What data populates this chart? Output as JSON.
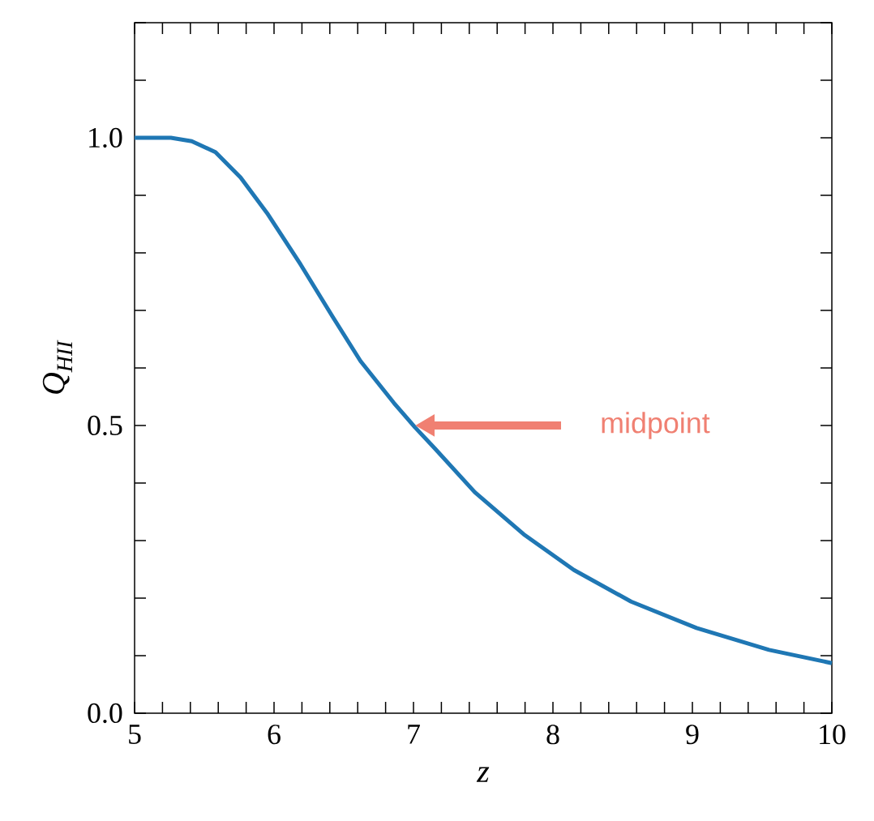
{
  "chart_data": {
    "type": "line",
    "xlabel": "z",
    "ylabel": "Q$_{HII}$",
    "x": [
      5,
      5.26,
      5.41,
      5.58,
      5.76,
      5.95,
      6.19,
      6.42,
      6.62,
      6.86,
      7.01,
      7.15,
      7.44,
      7.79,
      8.15,
      8.56,
      9.03,
      9.55,
      10
    ],
    "series": [
      {
        "color": "#1f77b4",
        "values": [
          1.0,
          1.0,
          0.994,
          0.975,
          0.931,
          0.869,
          0.78,
          0.689,
          0.612,
          0.539,
          0.497,
          0.461,
          0.384,
          0.311,
          0.249,
          0.194,
          0.148,
          0.11,
          0.087
        ]
      }
    ],
    "xlim": [
      5,
      10
    ],
    "ylim": [
      0,
      1.2
    ],
    "xticks": [
      5,
      {
        "value": 5.2,
        "label": null
      },
      {
        "value": 5.4,
        "label": null
      },
      {
        "value": 5.6,
        "label": null
      },
      {
        "value": 5.8,
        "label": null
      },
      6,
      {
        "value": 6.2,
        "label": null
      },
      {
        "value": 6.4,
        "label": null
      },
      {
        "value": 6.6,
        "label": null
      },
      {
        "value": 6.8,
        "label": null
      },
      7,
      {
        "value": 7.2,
        "label": null
      },
      {
        "value": 7.4,
        "label": null
      },
      {
        "value": 7.6,
        "label": null
      },
      {
        "value": 7.8,
        "label": null
      },
      8,
      {
        "value": 8.2,
        "label": null
      },
      {
        "value": 8.4,
        "label": null
      },
      {
        "value": 8.6,
        "label": null
      },
      {
        "value": 8.8,
        "label": null
      },
      9,
      {
        "value": 9.2,
        "label": null
      },
      {
        "value": 9.4,
        "label": null
      },
      {
        "value": 9.6,
        "label": null
      },
      {
        "value": 9.8,
        "label": null
      },
      10
    ],
    "yticks": [
      {
        "value": 0,
        "label": "0.0"
      },
      {
        "value": 0.1,
        "label": null
      },
      {
        "value": 0.2,
        "label": null
      },
      {
        "value": 0.3,
        "label": null
      },
      {
        "value": 0.4,
        "label": null
      },
      {
        "value": 0.5,
        "label": "0.5"
      },
      {
        "value": 0.6,
        "label": null
      },
      {
        "value": 0.7,
        "label": null
      },
      {
        "value": 0.8,
        "label": null
      },
      {
        "value": 0.9,
        "label": null
      },
      {
        "value": 1.0,
        "label": "1.0"
      },
      {
        "value": 1.1,
        "label": null
      },
      {
        "value": 1.2,
        "label": null
      }
    ],
    "grid": false,
    "marker": "none",
    "line_style": "solid",
    "annotations": [
      "midpoint"
    ]
  }
}
